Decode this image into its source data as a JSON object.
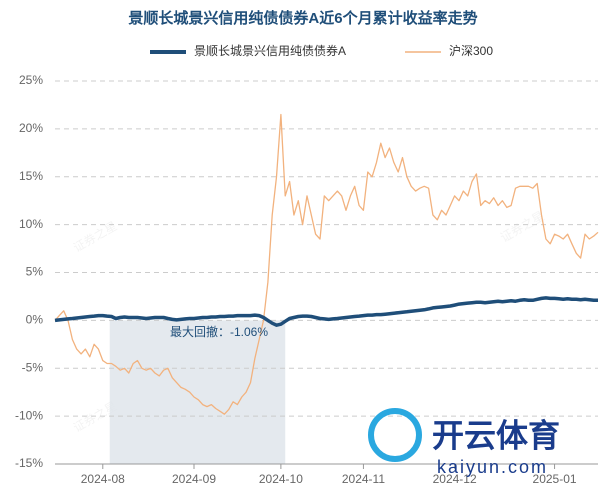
{
  "chart_data": {
    "type": "line",
    "title": "景顺长城景兴信用纯债债券A近6个月累计收益率走势",
    "annotation": "最大回撤：-1.06%",
    "categories": [
      null,
      null,
      null,
      null,
      null,
      null,
      null,
      null,
      null,
      null,
      null,
      "2024-08",
      null,
      null,
      null,
      null,
      null,
      null,
      null,
      null,
      null,
      null,
      null,
      null,
      null,
      null,
      null,
      null,
      null,
      null,
      null,
      null,
      "2024-09",
      null,
      null,
      null,
      null,
      null,
      null,
      null,
      null,
      null,
      null,
      null,
      null,
      null,
      null,
      null,
      null,
      null,
      null,
      null,
      "2024-10",
      null,
      null,
      null,
      null,
      null,
      null,
      null,
      null,
      null,
      null,
      null,
      null,
      null,
      null,
      null,
      null,
      null,
      null,
      "2024-11",
      null,
      null,
      null,
      null,
      null,
      null,
      null,
      null,
      null,
      null,
      null,
      null,
      null,
      null,
      null,
      null,
      null,
      null,
      null,
      null,
      "2024-12",
      null,
      null,
      null,
      null,
      null,
      null,
      null,
      null,
      null,
      null,
      null,
      null,
      null,
      null,
      null,
      null,
      null,
      null,
      null,
      null,
      null,
      null,
      "2025-01",
      null,
      null,
      null,
      null,
      null,
      null,
      null,
      null,
      null,
      null
    ],
    "series": [
      {
        "name": "景顺长城景兴信用纯债债券A",
        "color": "#1f4e79",
        "values": [
          0,
          0.05,
          0.1,
          0.15,
          0.2,
          0.25,
          0.3,
          0.35,
          0.4,
          0.45,
          0.5,
          0.5,
          0.45,
          0.4,
          0.2,
          0.3,
          0.35,
          0.3,
          0.3,
          0.3,
          0.25,
          0.2,
          0.25,
          0.3,
          0.3,
          0.3,
          0.2,
          0.1,
          0.05,
          0.1,
          0.15,
          0.2,
          0.2,
          0.25,
          0.3,
          0.3,
          0.35,
          0.35,
          0.4,
          0.4,
          0.45,
          0.45,
          0.5,
          0.5,
          0.5,
          0.5,
          0.55,
          0.5,
          0.3,
          0,
          -0.3,
          -0.5,
          -0.4,
          -0.1,
          0.2,
          0.3,
          0.4,
          0.45,
          0.45,
          0.4,
          0.3,
          0.2,
          0.15,
          0.1,
          0.15,
          0.2,
          0.25,
          0.3,
          0.35,
          0.4,
          0.45,
          0.5,
          0.55,
          0.55,
          0.6,
          0.6,
          0.65,
          0.7,
          0.75,
          0.8,
          0.85,
          0.9,
          0.95,
          1.0,
          1.05,
          1.1,
          1.2,
          1.3,
          1.35,
          1.4,
          1.45,
          1.5,
          1.6,
          1.7,
          1.75,
          1.8,
          1.85,
          1.9,
          1.9,
          1.85,
          1.9,
          1.95,
          2.0,
          1.95,
          2.0,
          2.05,
          2.0,
          2.1,
          2.15,
          2.1,
          2.1,
          2.2,
          2.3,
          2.35,
          2.3,
          2.3,
          2.25,
          2.2,
          2.25,
          2.2,
          2.2,
          2.15,
          2.2,
          2.15,
          2.1,
          2.1
        ]
      },
      {
        "name": "沪深300",
        "color": "#f2b27e",
        "values": [
          0,
          0.5,
          1,
          0,
          -2,
          -3,
          -3.5,
          -3,
          -3.8,
          -2.5,
          -3,
          -4.2,
          -4.5,
          -4.5,
          -4.8,
          -5.2,
          -5,
          -5.5,
          -4.5,
          -4.2,
          -5,
          -5.2,
          -5,
          -5.5,
          -5.8,
          -5.2,
          -5,
          -6,
          -6.5,
          -7,
          -7.2,
          -7.5,
          -8,
          -8.3,
          -8.8,
          -9,
          -8.8,
          -9.2,
          -9.5,
          -9.8,
          -9.3,
          -8.5,
          -8.8,
          -8,
          -7.5,
          -6.5,
          -4,
          -2,
          0,
          4,
          11,
          15,
          21.5,
          13,
          14.5,
          11,
          12.5,
          10,
          13,
          11,
          9,
          8.5,
          13,
          12.5,
          13,
          13.5,
          13,
          11.5,
          13,
          14,
          12,
          11.5,
          15.5,
          15,
          16.5,
          18.5,
          17,
          18,
          16.5,
          15.5,
          17,
          15,
          14,
          13.5,
          13.8,
          14,
          13.8,
          11,
          10.5,
          11.5,
          11,
          12,
          13,
          12.5,
          13.5,
          13,
          14.5,
          15.3,
          12,
          12.5,
          12.2,
          12.8,
          12,
          12.5,
          11.8,
          12,
          13.8,
          14,
          14,
          14,
          13.8,
          14.3,
          11,
          8.5,
          8,
          9,
          8.8,
          8.5,
          9,
          8,
          7,
          6.5,
          9,
          8.5,
          8.8,
          9.2
        ]
      }
    ],
    "ylim": [
      -15,
      25
    ],
    "yticks": [
      {
        "value": -15,
        "label": "-15%"
      },
      {
        "value": -10,
        "label": "-10%"
      },
      {
        "value": -5,
        "label": "-5%"
      },
      {
        "value": 0,
        "label": "0%"
      },
      {
        "value": 5,
        "label": "5%"
      },
      {
        "value": 10,
        "label": "10%"
      },
      {
        "value": 15,
        "label": "15%"
      },
      {
        "value": 20,
        "label": "20%"
      },
      {
        "value": 25,
        "label": "25%"
      }
    ],
    "grid": true,
    "legend": "top"
  },
  "overlay": {
    "watermark": "证券之星",
    "logo_text": "开云体育",
    "logo_url": "kaiyun.com"
  }
}
